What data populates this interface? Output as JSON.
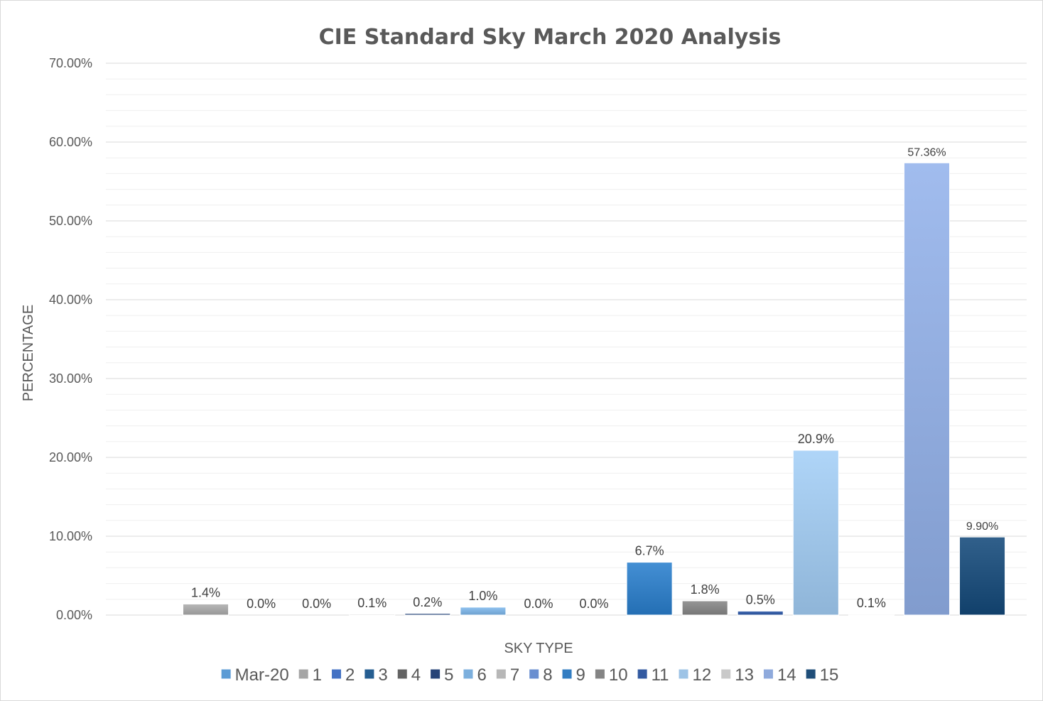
{
  "chart_data": {
    "type": "bar",
    "title": "CIE Standard Sky March 2020 Analysis",
    "xlabel": "SKY TYPE",
    "ylabel": "PERCENTAGE",
    "ylim": [
      0,
      70
    ],
    "yticks": [
      "0.00%",
      "10.00%",
      "20.00%",
      "30.00%",
      "40.00%",
      "50.00%",
      "60.00%",
      "70.00%"
    ],
    "grid": true,
    "legend_position": "bottom",
    "series": [
      {
        "name": "Mar-20",
        "value": 0,
        "label": "",
        "color": "#5b9bd5"
      },
      {
        "name": "1",
        "value": 1.4,
        "label": "1.4%",
        "color": "#a5a5a5"
      },
      {
        "name": "2",
        "value": 0.0,
        "label": "0.0%",
        "color": "#4472c4"
      },
      {
        "name": "3",
        "value": 0.0,
        "label": "0.0%",
        "color": "#255e91"
      },
      {
        "name": "4",
        "value": 0.1,
        "label": "0.1%",
        "color": "#636363"
      },
      {
        "name": "5",
        "value": 0.2,
        "label": "0.2%",
        "color": "#264478"
      },
      {
        "name": "6",
        "value": 1.0,
        "label": "1.0%",
        "color": "#7cafdd"
      },
      {
        "name": "7",
        "value": 0.0,
        "label": "0.0%",
        "color": "#b7b7b7"
      },
      {
        "name": "8",
        "value": 0.0,
        "label": "0.0%",
        "color": "#698ed0"
      },
      {
        "name": "9",
        "value": 6.7,
        "label": "6.7%",
        "color": "#327dc2"
      },
      {
        "name": "10",
        "value": 1.8,
        "label": "1.8%",
        "color": "#848484"
      },
      {
        "name": "11",
        "value": 0.5,
        "label": "0.5%",
        "color": "#335aa1"
      },
      {
        "name": "12",
        "value": 20.9,
        "label": "20.9%",
        "color": "#9dc3e6"
      },
      {
        "name": "13",
        "value": 0.1,
        "label": "0.1%",
        "color": "#c9c9c9"
      },
      {
        "name": "14",
        "value": 57.36,
        "label": "57.36%",
        "color": "#8faadc"
      },
      {
        "name": "15",
        "value": 9.9,
        "label": "9.90%",
        "color": "#1f4e79"
      }
    ]
  }
}
